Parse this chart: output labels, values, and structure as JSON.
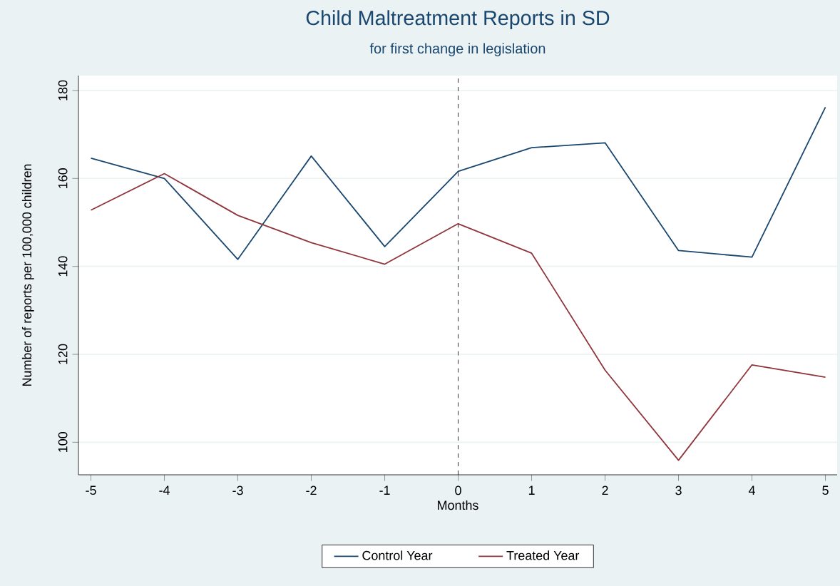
{
  "chart_data": {
    "type": "line",
    "title": "Child Maltreatment Reports in SD",
    "subtitle": "for first change in legislation",
    "xlabel": "Months",
    "ylabel": "Number of reports per 100,000 children",
    "x": [
      -5,
      -4,
      -3,
      -2,
      -1,
      0,
      1,
      2,
      3,
      4,
      5
    ],
    "series": [
      {
        "name": "Control Year",
        "color": "#1a476f",
        "values": [
          164.6,
          160,
          141.6,
          165.1,
          144.5,
          161.6,
          167,
          168.1,
          143.6,
          142.1,
          176.2
        ]
      },
      {
        "name": "Treated Year",
        "color": "#90353b",
        "values": [
          152.8,
          161.1,
          151.6,
          145.4,
          140.5,
          149.7,
          143,
          116.4,
          95.9,
          117.6,
          114.8
        ]
      }
    ],
    "xlim": [
      -5.17,
      5.16
    ],
    "ylim": [
      92.6,
      183.4
    ],
    "xticks": [
      -5,
      -4,
      -3,
      -2,
      -1,
      0,
      1,
      2,
      3,
      4,
      5
    ],
    "yticks": [
      100,
      120,
      140,
      160,
      180
    ],
    "ref_lines": [
      {
        "axis": "x",
        "value": 0,
        "line_style": "dashed",
        "color": "#000000"
      }
    ],
    "grid": "y",
    "legend": "bottom"
  }
}
